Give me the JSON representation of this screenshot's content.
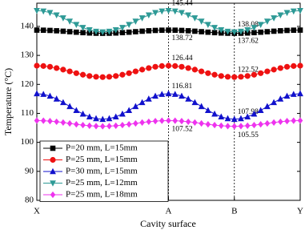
{
  "chart_data": {
    "type": "line",
    "y_label": "Temperature (°C)",
    "x_label": "Cavity surface",
    "x": [
      0,
      0.025,
      0.05,
      0.075,
      0.1,
      0.125,
      0.15,
      0.175,
      0.2,
      0.225,
      0.25,
      0.275,
      0.3,
      0.325,
      0.35,
      0.375,
      0.4,
      0.425,
      0.45,
      0.475,
      0.5,
      0.525,
      0.55,
      0.575,
      0.6,
      0.625,
      0.65,
      0.675,
      0.7,
      0.725,
      0.75,
      0.775,
      0.8,
      0.825,
      0.85,
      0.875,
      0.9,
      0.925,
      0.95,
      0.975,
      1
    ],
    "xlim": [
      0,
      1
    ],
    "xticks": [
      {
        "value": 0,
        "label": "X"
      },
      {
        "value": 0.5,
        "label": "A"
      },
      {
        "value": 0.75,
        "label": "B"
      },
      {
        "value": 1,
        "label": "Y"
      }
    ],
    "ylim": [
      80,
      148
    ],
    "yticks": [
      80,
      90,
      100,
      110,
      120,
      130,
      140
    ],
    "legend": "lower left",
    "series": [
      {
        "name": "P=20 mm, L=15mm",
        "color": "#000000",
        "marker": "square",
        "values": [
          138.72,
          138.69,
          138.61,
          138.49,
          138.34,
          138.17,
          138,
          137.85,
          137.73,
          137.65,
          137.62,
          137.65,
          137.73,
          137.85,
          138,
          138.17,
          138.34,
          138.49,
          138.61,
          138.69,
          138.72,
          138.69,
          138.61,
          138.49,
          138.34,
          138.17,
          138,
          137.85,
          137.73,
          137.65,
          137.62,
          137.65,
          137.73,
          137.85,
          138,
          138.17,
          138.34,
          138.49,
          138.61,
          138.69,
          138.72
        ]
      },
      {
        "name": "P=25 mm, L=15mm",
        "color": "#ee1111",
        "marker": "circle",
        "values": [
          126.44,
          126.34,
          126.07,
          125.63,
          125.09,
          124.48,
          123.87,
          123.33,
          122.89,
          122.62,
          122.52,
          122.62,
          122.89,
          123.33,
          123.87,
          124.48,
          125.09,
          125.63,
          126.07,
          126.34,
          126.44,
          126.34,
          126.07,
          125.63,
          125.09,
          124.48,
          123.87,
          123.33,
          122.89,
          122.62,
          122.52,
          122.62,
          122.89,
          123.33,
          123.87,
          124.48,
          125.09,
          125.63,
          126.07,
          126.34,
          126.44
        ]
      },
      {
        "name": "P=30 mm, L=15mm",
        "color": "#1111cc",
        "marker": "triangle-up",
        "values": [
          116.81,
          116.59,
          115.97,
          114.99,
          113.76,
          112.4,
          111.03,
          109.8,
          108.82,
          108.2,
          107.98,
          108.2,
          108.82,
          109.8,
          111.03,
          112.4,
          113.76,
          114.99,
          115.97,
          116.59,
          116.81,
          116.59,
          115.97,
          114.99,
          113.76,
          112.4,
          111.03,
          109.8,
          108.82,
          108.2,
          107.98,
          108.2,
          108.82,
          109.8,
          111.03,
          112.4,
          113.76,
          114.99,
          115.97,
          116.59,
          116.81
        ]
      },
      {
        "name": "P=25 mm, L=12mm",
        "color": "#2e9a96",
        "marker": "triangle-down",
        "values": [
          145.44,
          145.26,
          144.74,
          143.92,
          142.9,
          141.76,
          140.62,
          139.6,
          138.78,
          138.26,
          138.08,
          138.26,
          138.78,
          139.6,
          140.62,
          141.76,
          142.9,
          143.92,
          144.74,
          145.26,
          145.44,
          145.26,
          144.74,
          143.92,
          142.9,
          141.76,
          140.62,
          139.6,
          138.78,
          138.26,
          138.08,
          138.26,
          138.78,
          139.6,
          140.62,
          141.76,
          142.9,
          143.92,
          144.74,
          145.26,
          145.44
        ]
      },
      {
        "name": "P=25 mm, L=18mm",
        "color": "#ee33ee",
        "marker": "diamond",
        "values": [
          107.52,
          107.47,
          107.33,
          107.11,
          106.84,
          106.54,
          106.23,
          105.96,
          105.74,
          105.6,
          105.55,
          105.6,
          105.74,
          105.96,
          106.23,
          106.54,
          106.84,
          107.11,
          107.33,
          107.47,
          107.52,
          107.47,
          107.33,
          107.11,
          106.84,
          106.54,
          106.23,
          105.96,
          105.74,
          105.6,
          105.55,
          105.6,
          105.74,
          105.96,
          106.23,
          106.54,
          106.84,
          107.11,
          107.33,
          107.47,
          107.52
        ]
      }
    ]
  }
}
